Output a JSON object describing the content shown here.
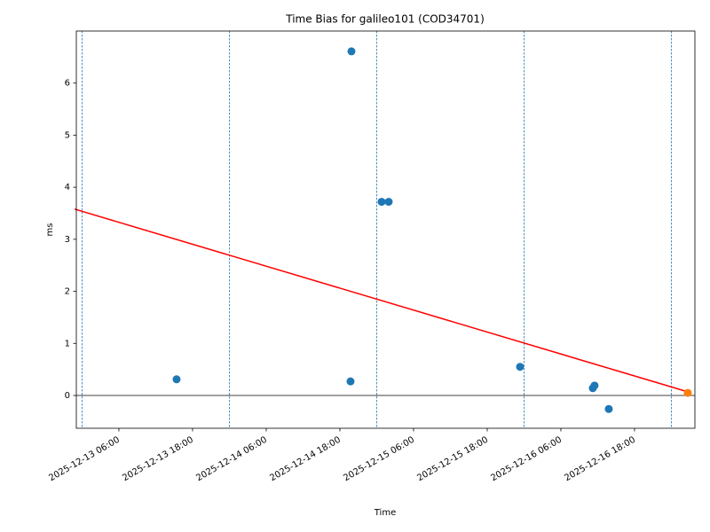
{
  "chart_data": {
    "type": "scatter",
    "title": "Time Bias for galileo101 (COD34701)",
    "xlabel": "Time",
    "ylabel": "ms",
    "xlim": [
      "2025-12-12 23:04",
      "2025-12-17 03:50"
    ],
    "ylim": [
      -0.63,
      7.0
    ],
    "xticks": [
      "2025-12-13 06:00",
      "2025-12-13 18:00",
      "2025-12-14 06:00",
      "2025-12-14 18:00",
      "2025-12-15 06:00",
      "2025-12-15 18:00",
      "2025-12-16 06:00",
      "2025-12-16 18:00"
    ],
    "yticks": [
      0,
      1,
      2,
      3,
      4,
      5,
      6
    ],
    "series": [
      {
        "color": "#1f77b4",
        "x": [
          "2025-12-13 15:24",
          "2025-12-14 19:53",
          "2025-12-14 19:44",
          "2025-12-15 00:48",
          "2025-12-15 01:57",
          "2025-12-15 23:21",
          "2025-12-16 11:12",
          "2025-12-16 11:29",
          "2025-12-16 13:48"
        ],
        "values": [
          0.31,
          6.61,
          0.27,
          3.72,
          3.72,
          0.55,
          0.14,
          0.19,
          -0.26
        ]
      },
      {
        "color": "#ff7f0e",
        "x": [
          "2025-12-17 02:40"
        ],
        "values": [
          0.05
        ]
      }
    ],
    "fit_line": {
      "color": "#ff0000",
      "x": [
        "2025-12-12 22:47",
        "2025-12-17 02:40"
      ],
      "values": [
        3.58,
        0.07
      ]
    },
    "vlines": {
      "color": "#1f77b4",
      "x": [
        "2025-12-13 00:00",
        "2025-12-14 00:00",
        "2025-12-15 00:00",
        "2025-12-16 00:00",
        "2025-12-17 00:00"
      ]
    },
    "axhline": 0
  }
}
